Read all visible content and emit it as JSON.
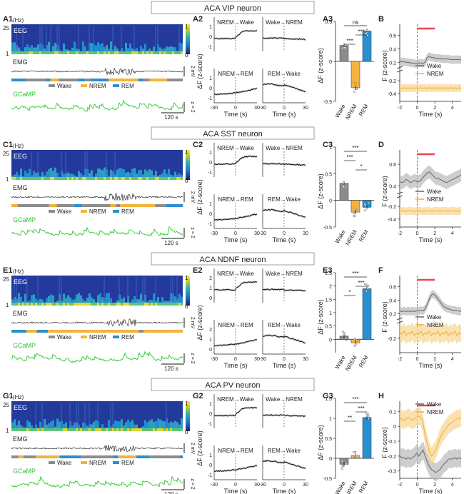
{
  "rows": [
    {
      "title": "ACA VIP neuron",
      "panels": {
        "eeg": "A1",
        "trans": "A2",
        "bar": "A3",
        "avg": "B"
      },
      "trans_yticks": [
        "1",
        "0",
        "-1"
      ],
      "bar_axis": {
        "ylim": [
          -0.5,
          0.5
        ],
        "yticks": [
          "0.5",
          "0",
          "-0.5"
        ]
      },
      "avg_axis": {
        "y_top": [
          0.2,
          0.4,
          0.6
        ],
        "y_bottom": [
          -0.4,
          -0.2
        ]
      },
      "bar_values": [
        0.2,
        -0.33,
        0.38
      ],
      "bar_sig": [
        {
          "from": 0,
          "to": 2,
          "label": "ns"
        },
        {
          "from": 1,
          "to": 2,
          "label": "***"
        },
        {
          "from": 0,
          "to": 1,
          "label": "***"
        }
      ],
      "avg_traces": [
        {
          "name": "Wake",
          "values": [
            0.21,
            0.21,
            0.21,
            0.2,
            0.2,
            0.19,
            0.19,
            0.18,
            0.18,
            0.19,
            0.19,
            0.18,
            0.2,
            0.27,
            0.29,
            0.27,
            0.27,
            0.26,
            0.26,
            0.26,
            0.25,
            0.25,
            0.25,
            0.25,
            0.24,
            0.24,
            0.24,
            0.24,
            0.24,
            0.24
          ]
        },
        {
          "name": "NREM",
          "values": [
            -0.31,
            -0.32,
            -0.31,
            -0.32,
            -0.31,
            -0.32,
            -0.31,
            -0.32,
            -0.31,
            -0.32,
            -0.31,
            -0.32,
            -0.31,
            -0.32,
            -0.31,
            -0.32,
            -0.31,
            -0.32,
            -0.31,
            -0.32,
            -0.31,
            -0.32,
            -0.31,
            -0.32,
            -0.31,
            -0.32,
            -0.31,
            -0.32,
            -0.31,
            -0.32
          ]
        }
      ],
      "show_y_break": true
    },
    {
      "title": "ACA SST neuron",
      "panels": {
        "eeg": "C1",
        "trans": "C2",
        "bar": "C3",
        "avg": "D"
      },
      "trans_yticks": [
        "1",
        "0",
        "-1"
      ],
      "bar_axis": {
        "ylim": [
          -0.5,
          1
        ],
        "yticks": [
          "1",
          "0.5",
          "0",
          "-0.5"
        ]
      },
      "avg_axis": {
        "y_top": [
          0.4,
          0.6
        ],
        "y_bottom": [
          -0.4,
          -0.2
        ]
      },
      "bar_values": [
        0.32,
        -0.22,
        -0.13
      ],
      "bar_sig": [
        {
          "from": 0,
          "to": 2,
          "label": "***"
        },
        {
          "from": 0,
          "to": 1,
          "label": "***"
        },
        {
          "from": 1,
          "to": 2,
          "label": "*"
        }
      ],
      "avg_traces": [
        {
          "name": "Wake",
          "values": [
            0.44,
            0.43,
            0.44,
            0.46,
            0.45,
            0.43,
            0.44,
            0.45,
            0.44,
            0.44,
            0.45,
            0.48,
            0.5,
            0.52,
            0.53,
            0.51,
            0.49,
            0.47,
            0.47,
            0.46,
            0.45,
            0.44,
            0.43,
            0.44,
            0.45,
            0.46,
            0.47,
            0.48,
            0.49,
            0.5
          ]
        },
        {
          "name": "NREM",
          "values": [
            -0.27,
            -0.27,
            -0.27,
            -0.28,
            -0.27,
            -0.27,
            -0.27,
            -0.28,
            -0.27,
            -0.27,
            -0.27,
            -0.28,
            -0.27,
            -0.27,
            -0.27,
            -0.28,
            -0.27,
            -0.27,
            -0.27,
            -0.28,
            -0.27,
            -0.27,
            -0.27,
            -0.28,
            -0.27,
            -0.27,
            -0.27,
            -0.28,
            -0.27,
            -0.27
          ]
        }
      ],
      "show_y_break": true
    },
    {
      "title": "ACA NDNF neuron",
      "panels": {
        "eeg": "E1",
        "trans": "E2",
        "bar": "E3",
        "avg": "F"
      },
      "trans_yticks": [
        "2",
        "1",
        "0",
        "-1"
      ],
      "bar_axis": {
        "ylim": [
          -0.5,
          2.5
        ],
        "yticks": [
          "2.5",
          "2",
          "1.5",
          "1",
          "0.5",
          "0"
        ]
      },
      "avg_axis": {
        "y_top": [
          0.2,
          0.4,
          0.6
        ],
        "y_bottom": [
          -0.2
        ]
      },
      "bar_values": [
        0.12,
        -0.13,
        1.9
      ],
      "bar_sig": [
        {
          "from": 0,
          "to": 2,
          "label": "***"
        },
        {
          "from": 1,
          "to": 2,
          "label": "***"
        },
        {
          "from": 0,
          "to": 1,
          "label": "*"
        }
      ],
      "avg_traces": [
        {
          "name": "Wake",
          "values": [
            0.24,
            0.23,
            0.24,
            0.23,
            0.24,
            0.23,
            0.24,
            0.23,
            0.24,
            0.24,
            0.25,
            0.24,
            0.27,
            0.34,
            0.42,
            0.48,
            0.49,
            0.46,
            0.42,
            0.38,
            0.33,
            0.3,
            0.28,
            0.27,
            0.26,
            0.25,
            0.25,
            0.24,
            0.24,
            0.23
          ]
        },
        {
          "name": "NREM",
          "values": [
            -0.16,
            -0.17,
            -0.15,
            -0.18,
            -0.16,
            -0.17,
            -0.15,
            -0.18,
            -0.16,
            -0.17,
            -0.15,
            -0.18,
            -0.16,
            -0.17,
            -0.15,
            -0.18,
            -0.16,
            -0.17,
            -0.15,
            -0.18,
            -0.16,
            -0.17,
            -0.15,
            -0.18,
            -0.16,
            -0.17,
            -0.15,
            -0.18,
            -0.16,
            -0.17
          ]
        }
      ],
      "show_y_break": true
    },
    {
      "title": "ACA PV neuron",
      "panels": {
        "eeg": "G1",
        "trans": "G2",
        "bar": "G3",
        "avg": "H"
      },
      "trans_yticks": [
        "1",
        "0",
        "-1"
      ],
      "bar_axis": {
        "ylim": [
          -0.5,
          1.5
        ],
        "yticks": [
          "1.5",
          "1",
          "0.5",
          "0",
          "-0.5"
        ]
      },
      "avg_axis": {
        "y_top": [
          0.1,
          0,
          -0.1,
          -0.2,
          -0.3
        ],
        "y_bottom": []
      },
      "bar_values": [
        -0.15,
        0.07,
        1.02
      ],
      "bar_sig": [
        {
          "from": 0,
          "to": 2,
          "label": "***"
        },
        {
          "from": 1,
          "to": 2,
          "label": "***"
        },
        {
          "from": 0,
          "to": 1,
          "label": "**"
        }
      ],
      "avg_traces": [
        {
          "name": "Wake",
          "values": [
            -0.2,
            -0.21,
            -0.21,
            -0.22,
            -0.21,
            -0.22,
            -0.21,
            -0.2,
            -0.18,
            -0.2,
            -0.18,
            -0.16,
            -0.2,
            -0.24,
            -0.27,
            -0.29,
            -0.3,
            -0.31,
            -0.3,
            -0.29,
            -0.27,
            -0.25,
            -0.24,
            -0.22,
            -0.22,
            -0.22,
            -0.21,
            -0.22,
            -0.21,
            -0.22
          ]
        },
        {
          "name": "NREM",
          "values": [
            0.05,
            0.05,
            0.04,
            0.05,
            0.06,
            0.05,
            0.04,
            0.05,
            0.06,
            0.07,
            0.06,
            0.02,
            -0.06,
            -0.12,
            -0.17,
            -0.2,
            -0.18,
            -0.16,
            -0.12,
            -0.08,
            -0.05,
            -0.03,
            -0.01,
            0.01,
            0.02,
            0.03,
            0.04,
            0.05,
            0.05,
            0.06
          ]
        }
      ],
      "show_y_break": false
    }
  ],
  "labels": {
    "hz": "(Hz)",
    "eeg": "EEG",
    "emg": "EMG",
    "gcamp": "GCaMP",
    "f25": "25",
    "f1": "1",
    "cbar_top": "1",
    "cbar_bot": "0",
    "emg_scale": "2 mV",
    "gcamp_scale": "z = 2",
    "time_scale": "120 s",
    "trans_ylabel": "ΔF (z-score)",
    "bar_ylabel": "ΔF (z-score)",
    "avg_ylabel": "F (z-score)",
    "xlabel": "Time (s)",
    "trans_xticks": [
      "-30",
      "0",
      "30"
    ],
    "avg_xticks": [
      "-2",
      "0",
      "2",
      "4"
    ],
    "transitions": [
      "NREM→Wake",
      "Wake→NREM",
      "NREM→REM",
      "REM→Wake"
    ],
    "states": [
      "Wake",
      "NREM",
      "REM"
    ],
    "avg_series": [
      "Wake",
      "NREM"
    ]
  },
  "colors": {
    "wake": "#8c8c8c",
    "nrem": "#f3b33d",
    "rem": "#2a8fcf",
    "gcamp": "#2ec72e",
    "stim": "#e8474b"
  }
}
